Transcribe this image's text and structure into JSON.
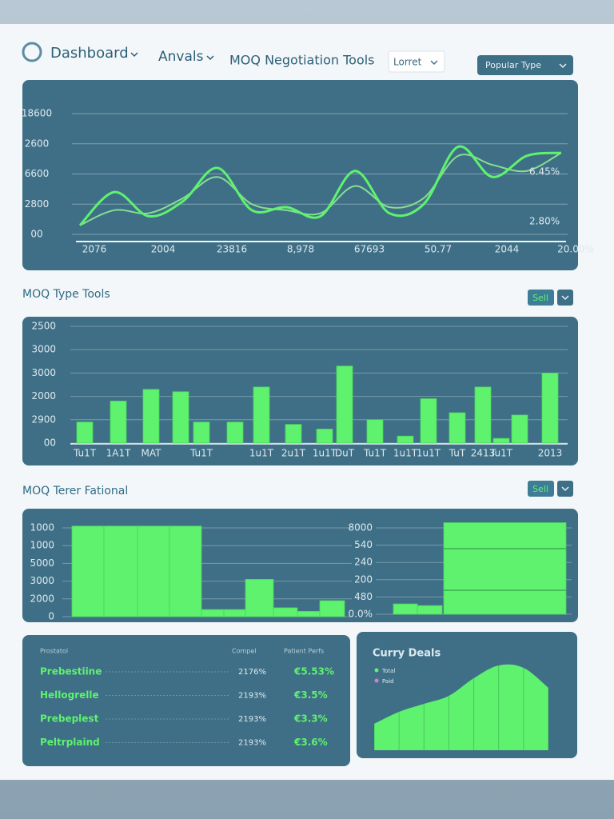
{
  "nav": {
    "brand": "Dashboard",
    "menu_2": "Anvals",
    "menu_3": "MOQ Negotiation Tools",
    "dropdown": "Lorret",
    "button": "Popular Type"
  },
  "sections": [
    {
      "title": "MOQ Type Tools",
      "button": "Sell"
    },
    {
      "title": "MOQ Terer Fational",
      "button": "Sell"
    }
  ],
  "chart_data": [
    {
      "type": "line",
      "categories": [
        "2076",
        null,
        "2004",
        null,
        "23816",
        null,
        "8,978",
        null,
        "67693",
        null,
        "50.77",
        null,
        "2044",
        null,
        "20.00%"
      ],
      "series": [
        {
          "color": "#5ef26e",
          "values": [
            0.3,
            1.4,
            0.6,
            1.1,
            2.2,
            0.8,
            0.9,
            0.6,
            2.1,
            0.7,
            1.0,
            2.9,
            1.9,
            2.6,
            2.7
          ]
        },
        {
          "color": "#86df92",
          "values": [
            0.3,
            0.8,
            0.7,
            1.2,
            1.9,
            1.0,
            0.8,
            0.7,
            1.6,
            0.9,
            1.2,
            2.6,
            2.3,
            2.1,
            2.7
          ]
        }
      ],
      "ylim": [
        0,
        4
      ],
      "yticks": [
        {
          "value": 0,
          "label": "00"
        },
        {
          "value": 1,
          "label": "2800"
        },
        {
          "value": 2,
          "label": "6600"
        },
        {
          "value": 3,
          "label": "2600"
        },
        {
          "value": 4,
          "label": "18600"
        }
      ],
      "annotations": [
        "6.45%",
        "2.80%"
      ],
      "grid": true
    },
    {
      "type": "bar",
      "categories": [
        "Tu1T",
        "1A1T",
        "MAT",
        null,
        "Tu1T",
        null,
        "1u1T",
        "2u1T",
        "1u1T",
        "DuT",
        "Tu1T",
        "1u1T",
        "1u1T",
        "TuT",
        "2413",
        "Tu1T",
        null,
        "2013"
      ],
      "values": [
        0.9,
        1.8,
        2.3,
        2.2,
        0.9,
        0.9,
        2.4,
        0.8,
        0.6,
        3.3,
        1.0,
        0.3,
        1.9,
        1.3,
        2.4,
        0.2,
        1.2,
        3.0
      ],
      "color": "#5ef26e",
      "ylim": [
        0,
        5
      ],
      "yticks": [
        {
          "value": 0,
          "label": "00"
        },
        {
          "value": 1,
          "label": "2900"
        },
        {
          "value": 2,
          "label": "2000"
        },
        {
          "value": 3,
          "label": "3000"
        },
        {
          "value": 4,
          "label": "3000"
        },
        {
          "value": 5,
          "label": "2500"
        }
      ],
      "grid": true
    },
    {
      "type": "bar",
      "values": [
        5.1,
        5.1,
        5.1,
        5.1,
        0.4,
        0.4,
        2.1,
        0.5,
        0.3,
        0.9
      ],
      "color": "#5ef26e",
      "ylim": [
        0,
        5
      ],
      "yticks": [
        0,
        {
          "value": 1,
          "label": "2000"
        },
        {
          "value": 2,
          "label": "3000"
        },
        {
          "value": 3,
          "label": "5000"
        },
        {
          "value": 4,
          "label": "1000"
        },
        {
          "value": 5,
          "label": "1000"
        }
      ],
      "grid": true
    },
    {
      "type": "bar",
      "values": [
        0.6,
        0.5,
        5.3
      ],
      "color": "#5ef26e",
      "ylim": [
        0,
        5
      ],
      "yticks": [
        {
          "value": 0,
          "label": "0.0%"
        },
        {
          "value": 1,
          "label": "480"
        },
        {
          "value": 2,
          "label": "200"
        },
        {
          "value": 3,
          "label": "240"
        },
        {
          "value": 4,
          "label": "540"
        },
        {
          "value": 5,
          "label": "8000"
        }
      ],
      "grid": true
    },
    {
      "type": "area",
      "title": "Curry Deals",
      "legend": [
        {
          "name": "Total",
          "color": "#5ef26e"
        },
        {
          "name": "Paid",
          "color": "#e27ad0"
        }
      ],
      "values": [
        33,
        48,
        58,
        68,
        90,
        106,
        103,
        78
      ],
      "color": "#5ef26e",
      "ylim": [
        0,
        120
      ]
    }
  ],
  "table": {
    "header": [
      "Prostatol",
      "Compel",
      "Patient Perfs"
    ],
    "rows": [
      [
        "Prebestiine",
        "2176%",
        "€5.53%"
      ],
      [
        "Hellogrelle",
        "2193%",
        "€3.5%"
      ],
      [
        "Prebeplest",
        "2193%",
        "€3.3%"
      ],
      [
        "Peltrplaind",
        "2193%",
        "€3.6%"
      ]
    ]
  }
}
